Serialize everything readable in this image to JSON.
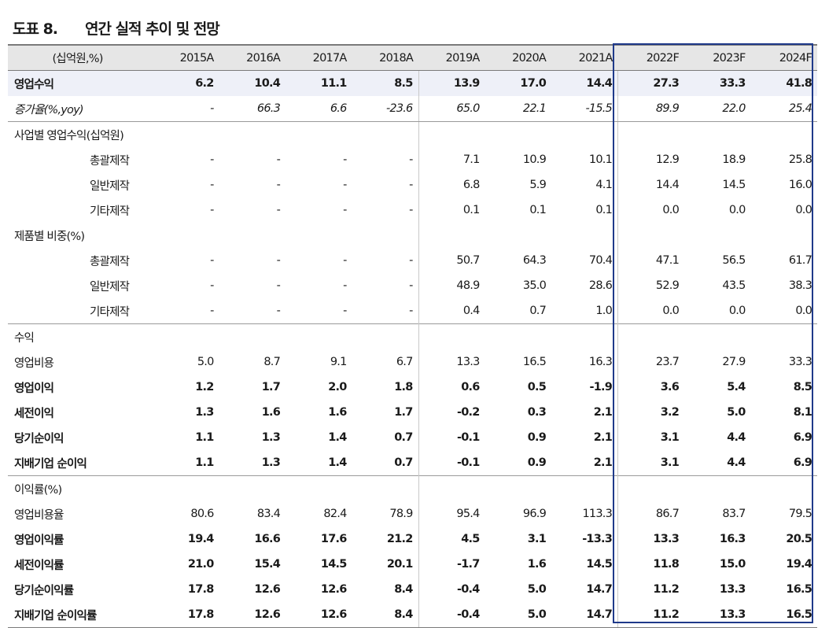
{
  "title": {
    "label": "도표 8.",
    "text": "연간 실적 추이 및 전망"
  },
  "header": [
    "(십억원,%)",
    "2015A",
    "2016A",
    "2017A",
    "2018A",
    "2019A",
    "2020A",
    "2021A",
    "2022F",
    "2023F",
    "2024F"
  ],
  "rows": [
    [
      "영업수익",
      "6.2",
      "10.4",
      "11.1",
      "8.5",
      "13.9",
      "17.0",
      "14.4",
      "27.3",
      "33.3",
      "41.8"
    ],
    [
      "증가율(%,yoy)",
      "-",
      "66.3",
      "6.6",
      "-23.6",
      "65.0",
      "22.1",
      "-15.5",
      "89.9",
      "22.0",
      "25.4"
    ],
    [
      "사업별 영업수익(십억원)",
      "",
      "",
      "",
      "",
      "",
      "",
      "",
      "",
      "",
      ""
    ],
    [
      "총괄제작",
      "-",
      "-",
      "-",
      "-",
      "7.1",
      "10.9",
      "10.1",
      "12.9",
      "18.9",
      "25.8"
    ],
    [
      "일반제작",
      "-",
      "-",
      "-",
      "-",
      "6.8",
      "5.9",
      "4.1",
      "14.4",
      "14.5",
      "16.0"
    ],
    [
      "기타제작",
      "-",
      "-",
      "-",
      "-",
      "0.1",
      "0.1",
      "0.1",
      "0.0",
      "0.0",
      "0.0"
    ],
    [
      "제품별 비중(%)",
      "",
      "",
      "",
      "",
      "",
      "",
      "",
      "",
      "",
      ""
    ],
    [
      "총괄제작",
      "-",
      "-",
      "-",
      "-",
      "50.7",
      "64.3",
      "70.4",
      "47.1",
      "56.5",
      "61.7"
    ],
    [
      "일반제작",
      "-",
      "-",
      "-",
      "-",
      "48.9",
      "35.0",
      "28.6",
      "52.9",
      "43.5",
      "38.3"
    ],
    [
      "기타제작",
      "-",
      "-",
      "-",
      "-",
      "0.4",
      "0.7",
      "1.0",
      "0.0",
      "0.0",
      "0.0"
    ],
    [
      "수익",
      "",
      "",
      "",
      "",
      "",
      "",
      "",
      "",
      "",
      ""
    ],
    [
      "영업비용",
      "5.0",
      "8.7",
      "9.1",
      "6.7",
      "13.3",
      "16.5",
      "16.3",
      "23.7",
      "27.9",
      "33.3"
    ],
    [
      "영업이익",
      "1.2",
      "1.7",
      "2.0",
      "1.8",
      "0.6",
      "0.5",
      "-1.9",
      "3.6",
      "5.4",
      "8.5"
    ],
    [
      "세전이익",
      "1.3",
      "1.6",
      "1.6",
      "1.7",
      "-0.2",
      "0.3",
      "2.1",
      "3.2",
      "5.0",
      "8.1"
    ],
    [
      "당기순이익",
      "1.1",
      "1.3",
      "1.4",
      "0.7",
      "-0.1",
      "0.9",
      "2.1",
      "3.1",
      "4.4",
      "6.9"
    ],
    [
      "지배기업 순이익",
      "1.1",
      "1.3",
      "1.4",
      "0.7",
      "-0.1",
      "0.9",
      "2.1",
      "3.1",
      "4.4",
      "6.9"
    ],
    [
      "이익률(%)",
      "",
      "",
      "",
      "",
      "",
      "",
      "",
      "",
      "",
      ""
    ],
    [
      "영업비용율",
      "80.6",
      "83.4",
      "82.4",
      "78.9",
      "95.4",
      "96.9",
      "113.3",
      "86.7",
      "83.7",
      "79.5"
    ],
    [
      "영업이익률",
      "19.4",
      "16.6",
      "17.6",
      "21.2",
      "4.5",
      "3.1",
      "-13.3",
      "13.3",
      "16.3",
      "20.5"
    ],
    [
      "세전이익률",
      "21.0",
      "15.4",
      "14.5",
      "20.1",
      "-1.7",
      "1.6",
      "14.5",
      "11.8",
      "15.0",
      "19.4"
    ],
    [
      "당기순이익률",
      "17.8",
      "12.6",
      "12.6",
      "8.4",
      "-0.4",
      "5.0",
      "14.7",
      "11.2",
      "13.3",
      "16.5"
    ],
    [
      "지배기업 순이익률",
      "17.8",
      "12.6",
      "12.6",
      "8.4",
      "-0.4",
      "5.0",
      "14.7",
      "11.2",
      "13.3",
      "16.5"
    ]
  ],
  "colors": {
    "highlight_row": "#eef0f8",
    "header_bg": "#e6e6e6",
    "forecast_box": "#1f3a8a"
  }
}
